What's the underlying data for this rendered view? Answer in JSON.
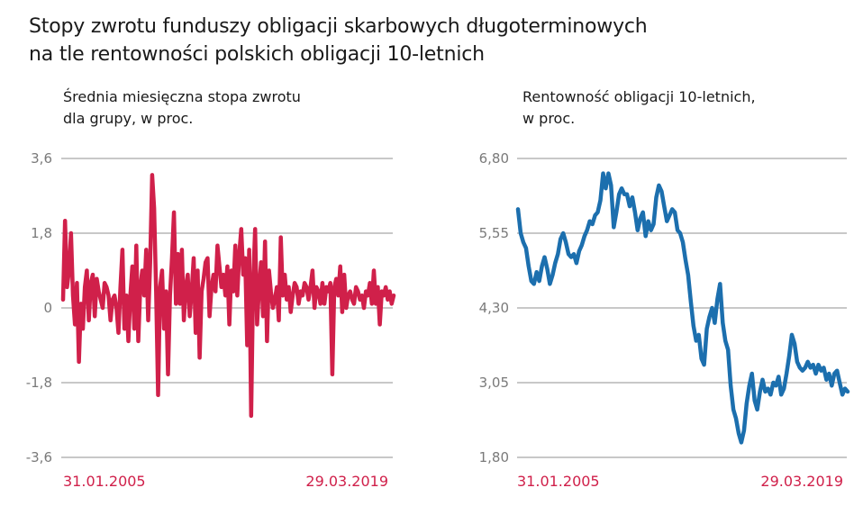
{
  "title_line1": "Stopy zwrotu funduszy obligacji skarbowych długoterminowych",
  "title_line2": "na tle rentowności polskich obligacji 10-letnich",
  "colors": {
    "left_series": "#d0204a",
    "right_series": "#1c6fae",
    "date_labels": "#d0204a",
    "grid": "#b5b5b5",
    "ticks": "#7a7a7a"
  },
  "chart_data": [
    {
      "type": "line",
      "subtitle_line1": "Średnia miesięczna stopa zwrotu",
      "subtitle_line2": "dla grupy, w proc.",
      "y_tick_labels": [
        "3,6",
        "1,8",
        "0",
        "-1,8",
        "-3,6"
      ],
      "y_ticks": [
        3.6,
        1.8,
        0,
        -1.8,
        -3.6
      ],
      "ylim": [
        -3.6,
        3.6
      ],
      "x_start_label": "31.01.2005",
      "x_end_label": "29.03.2019",
      "grid": true,
      "x": {
        "start": "2005-01-31",
        "end": "2019-03-29",
        "frequency": "monthly"
      },
      "series": [
        {
          "values": [
            0.2,
            2.1,
            0.5,
            0.9,
            1.8,
            0.3,
            -0.4,
            0.6,
            -1.3,
            0.1,
            -0.5,
            0.5,
            0.9,
            -0.3,
            0.6,
            0.8,
            -0.2,
            0.7,
            0.4,
            0.2,
            0.0,
            0.6,
            0.5,
            0.3,
            -0.3,
            0.2,
            0.3,
            0.0,
            -0.6,
            0.5,
            1.4,
            -0.5,
            0.3,
            -0.8,
            0.3,
            1.0,
            -0.5,
            1.5,
            -0.8,
            0.5,
            0.9,
            0.3,
            1.4,
            -0.3,
            1.1,
            3.2,
            2.4,
            0.4,
            -2.1,
            0.5,
            0.9,
            -0.5,
            0.4,
            -1.6,
            0.3,
            1.2,
            2.3,
            0.1,
            1.3,
            0.1,
            1.4,
            -0.3,
            0.5,
            0.8,
            -0.2,
            0.4,
            1.2,
            -0.6,
            0.9,
            -1.2,
            0.4,
            0.7,
            1.1,
            1.2,
            -0.2,
            0.5,
            0.8,
            0.4,
            1.5,
            1.0,
            0.5,
            0.8,
            0.3,
            1.0,
            -0.4,
            0.9,
            0.4,
            1.5,
            0.3,
            1.3,
            1.9,
            0.8,
            1.2,
            -0.9,
            1.4,
            -2.6,
            0.6,
            1.9,
            -0.4,
            0.5,
            1.1,
            -0.2,
            1.6,
            -0.8,
            0.9,
            0.4,
            0.0,
            0.2,
            0.5,
            -0.3,
            1.7,
            0.3,
            0.8,
            0.2,
            0.5,
            -0.1,
            0.3,
            0.6,
            0.5,
            0.1,
            0.4,
            0.3,
            0.6,
            0.5,
            0.2,
            0.5,
            0.9,
            0.0,
            0.5,
            0.4,
            0.1,
            0.6,
            0.1,
            0.5,
            0.4,
            0.6,
            -1.6,
            0.5,
            0.7,
            0.3,
            1.0,
            -0.1,
            0.8,
            0.0,
            0.3,
            0.4,
            0.2,
            0.1,
            0.5,
            0.4,
            0.2,
            0.3,
            0.0,
            0.4,
            0.3,
            0.6,
            0.1,
            0.9,
            0.1,
            0.5,
            -0.4,
            0.4,
            0.3,
            0.5,
            0.2,
            0.4,
            0.1,
            0.3
          ]
        }
      ]
    },
    {
      "type": "line",
      "subtitle_line1": "Rentowność obligacji 10-letnich,",
      "subtitle_line2": "w proc.",
      "y_tick_labels": [
        "6,80",
        "5,55",
        "4,30",
        "3,05",
        "1,80"
      ],
      "y_ticks": [
        6.8,
        5.55,
        4.3,
        3.05,
        1.8
      ],
      "ylim": [
        1.8,
        6.8
      ],
      "x_start_label": "31.01.2005",
      "x_end_label": "29.03.2019",
      "grid": true,
      "x": {
        "start": "2005-01-31",
        "end": "2019-03-29",
        "frequency": "monthly"
      },
      "series": [
        {
          "values": [
            5.95,
            5.55,
            5.4,
            5.3,
            5.0,
            4.75,
            4.7,
            4.9,
            4.75,
            5.0,
            5.15,
            4.95,
            4.7,
            4.85,
            5.05,
            5.2,
            5.45,
            5.55,
            5.4,
            5.2,
            5.15,
            5.2,
            5.05,
            5.25,
            5.35,
            5.5,
            5.6,
            5.75,
            5.7,
            5.85,
            5.9,
            6.1,
            6.55,
            6.3,
            6.55,
            6.35,
            5.65,
            5.9,
            6.2,
            6.3,
            6.2,
            6.2,
            6.0,
            6.15,
            5.9,
            5.6,
            5.8,
            5.9,
            5.5,
            5.75,
            5.6,
            5.7,
            6.15,
            6.35,
            6.25,
            6.0,
            5.75,
            5.85,
            5.95,
            5.9,
            5.6,
            5.55,
            5.4,
            5.1,
            4.85,
            4.4,
            4.0,
            3.75,
            3.85,
            3.45,
            3.35,
            3.95,
            4.15,
            4.3,
            4.05,
            4.45,
            4.7,
            4.05,
            3.75,
            3.6,
            3.0,
            2.6,
            2.45,
            2.2,
            2.05,
            2.25,
            2.7,
            3.0,
            3.2,
            2.75,
            2.6,
            2.9,
            3.1,
            2.9,
            2.95,
            2.85,
            3.05,
            3.0,
            3.15,
            2.85,
            2.95,
            3.2,
            3.5,
            3.85,
            3.7,
            3.4,
            3.3,
            3.25,
            3.3,
            3.4,
            3.3,
            3.35,
            3.2,
            3.35,
            3.25,
            3.3,
            3.1,
            3.2,
            3.0,
            3.2,
            3.25,
            3.05,
            2.85,
            2.95,
            2.9
          ]
        }
      ]
    }
  ]
}
